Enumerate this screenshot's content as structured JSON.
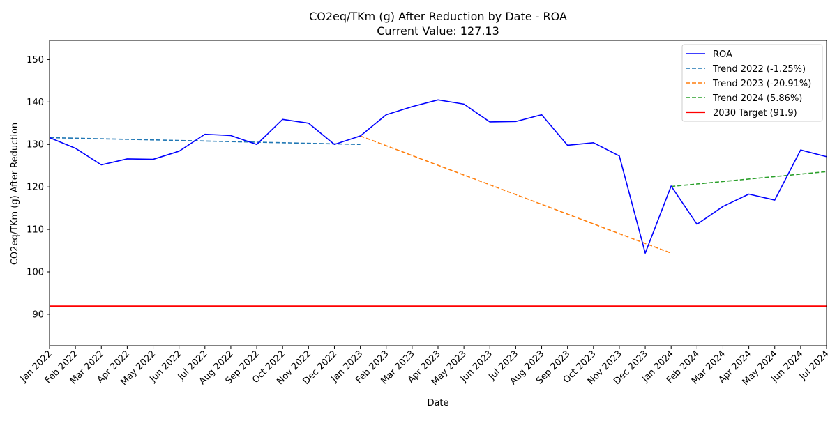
{
  "chart_data": {
    "type": "line",
    "title": "CO2eq/TKm (g) After Reduction by Date - ROA",
    "subtitle": "Current Value: 127.13",
    "xlabel": "Date",
    "ylabel": "CO2eq/TKm (g) After Reduction",
    "ylim": [
      82.6,
      154.5
    ],
    "yticks": [
      90,
      100,
      110,
      120,
      130,
      140,
      150
    ],
    "categories": [
      "Jan 2022",
      "Feb 2022",
      "Mar 2022",
      "Apr 2022",
      "May 2022",
      "Jun 2022",
      "Jul 2022",
      "Aug 2022",
      "Sep 2022",
      "Oct 2022",
      "Nov 2022",
      "Dec 2022",
      "Jan 2023",
      "Feb 2023",
      "Mar 2023",
      "Apr 2023",
      "May 2023",
      "Jun 2023",
      "Jul 2023",
      "Aug 2023",
      "Sep 2023",
      "Oct 2023",
      "Nov 2023",
      "Dec 2023",
      "Jan 2024",
      "Feb 2024",
      "Mar 2024",
      "Apr 2024",
      "May 2024",
      "Jun 2024",
      "Jul 2024"
    ],
    "grid": false,
    "legend_position": "top-right",
    "series": [
      {
        "name": "ROA",
        "color": "#0000ff",
        "style": "solid",
        "x": [
          "Jan 2022",
          "Feb 2022",
          "Mar 2022",
          "Apr 2022",
          "May 2022",
          "Jun 2022",
          "Jul 2022",
          "Aug 2022",
          "Sep 2022",
          "Oct 2022",
          "Nov 2022",
          "Dec 2022",
          "Jan 2023",
          "Feb 2023",
          "Mar 2023",
          "Apr 2023",
          "May 2023",
          "Jun 2023",
          "Jul 2023",
          "Aug 2023",
          "Sep 2023",
          "Oct 2023",
          "Nov 2023",
          "Dec 2023",
          "Jan 2024",
          "Feb 2024",
          "Mar 2024",
          "Apr 2024",
          "May 2024",
          "Jun 2024",
          "Jul 2024"
        ],
        "values": [
          131.6,
          129.1,
          125.2,
          126.6,
          126.5,
          128.4,
          132.4,
          132.1,
          130.0,
          135.9,
          135.0,
          130.0,
          132.0,
          137.0,
          138.9,
          140.5,
          139.5,
          135.3,
          135.4,
          137.0,
          129.8,
          130.4,
          127.3,
          104.4,
          120.2,
          111.2,
          115.4,
          118.3,
          116.9,
          128.7,
          127.13
        ]
      },
      {
        "name": "Trend 2022 (-1.25%)",
        "color": "#1f77b4",
        "style": "dashed",
        "x": [
          "Jan 2022",
          "Jan 2023"
        ],
        "values": [
          131.6,
          130.0
        ]
      },
      {
        "name": "Trend 2023 (-20.91%)",
        "color": "#ff7f0e",
        "style": "dashed",
        "x": [
          "Jan 2023",
          "Jan 2024"
        ],
        "values": [
          132.0,
          104.4
        ]
      },
      {
        "name": "Trend 2024 (5.86%)",
        "color": "#2ca02c",
        "style": "dashed",
        "x": [
          "Jan 2024",
          "Jul 2024"
        ],
        "values": [
          120.1,
          123.6
        ]
      },
      {
        "name": "2030 Target (91.9)",
        "color": "#ff0000",
        "style": "solid-thick",
        "x": [
          "Jan 2022",
          "Jul 2024"
        ],
        "values": [
          91.9,
          91.9
        ]
      }
    ]
  }
}
